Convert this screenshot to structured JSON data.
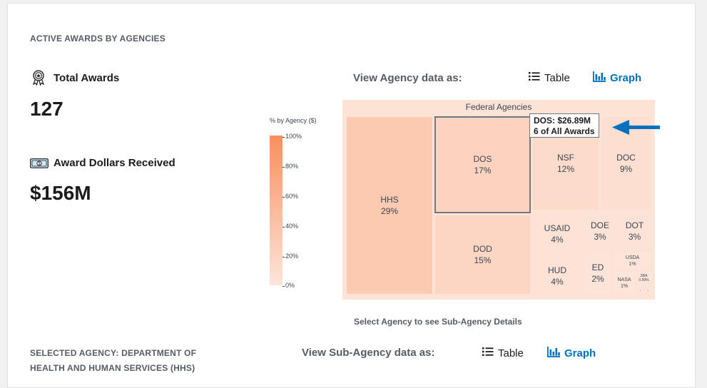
{
  "section": {
    "title": "ACTIVE AWARDS BY AGENCIES"
  },
  "stats": {
    "total_awards": {
      "label": "Total Awards",
      "value": "127",
      "icon": "award-ribbon-icon"
    },
    "award_dollars": {
      "label": "Award Dollars Received",
      "value": "$156M",
      "icon": "money-bill-icon"
    }
  },
  "view_toggle": {
    "label": "View Agency data as:",
    "table_label": "Table",
    "graph_label": "Graph",
    "selected": "Graph"
  },
  "legend": {
    "title": "% by Agency ($)",
    "ticks": [
      "100%",
      "80%",
      "60%",
      "40%",
      "20%",
      "0%"
    ],
    "color_high": "#f98f5d",
    "color_low": "#fde5da"
  },
  "treemap": {
    "title": "Federal Agencies",
    "cells": [
      {
        "agency": "HHS",
        "pct": "29%"
      },
      {
        "agency": "DOS",
        "pct": "17%"
      },
      {
        "agency": "DOD",
        "pct": "15%"
      },
      {
        "agency": "NSF",
        "pct": "12%"
      },
      {
        "agency": "DOC",
        "pct": "9%"
      },
      {
        "agency": "USAID",
        "pct": "4%"
      },
      {
        "agency": "HUD",
        "pct": "4%"
      },
      {
        "agency": "DOE",
        "pct": "3%"
      },
      {
        "agency": "DOT",
        "pct": "3%"
      },
      {
        "agency": "ED",
        "pct": "2%"
      },
      {
        "agency": "USDA",
        "pct": "1%"
      },
      {
        "agency": "NASA",
        "pct": "1%"
      },
      {
        "agency": "SBA",
        "pct": "0.99%"
      },
      {
        "agency": "",
        "pct": "-"
      },
      {
        "agency": "",
        "pct": "-"
      }
    ],
    "tooltip": {
      "line1": "DOS: $26.89M",
      "line2": "6 of All Awards"
    },
    "hint": "Select Agency to see Sub-Agency Details"
  },
  "selected_agency": {
    "title_line1": "SELECTED AGENCY: DEPARTMENT OF",
    "title_line2": "HEALTH AND HUMAN SERVICES (HHS)"
  },
  "sub_view_toggle": {
    "label": "View Sub-Agency data as:",
    "table_label": "Table",
    "graph_label": "Graph",
    "selected": "Graph"
  },
  "colors": {
    "accent": "#0071bc",
    "arrow": "#0071bc",
    "heading": "#565c65"
  }
}
